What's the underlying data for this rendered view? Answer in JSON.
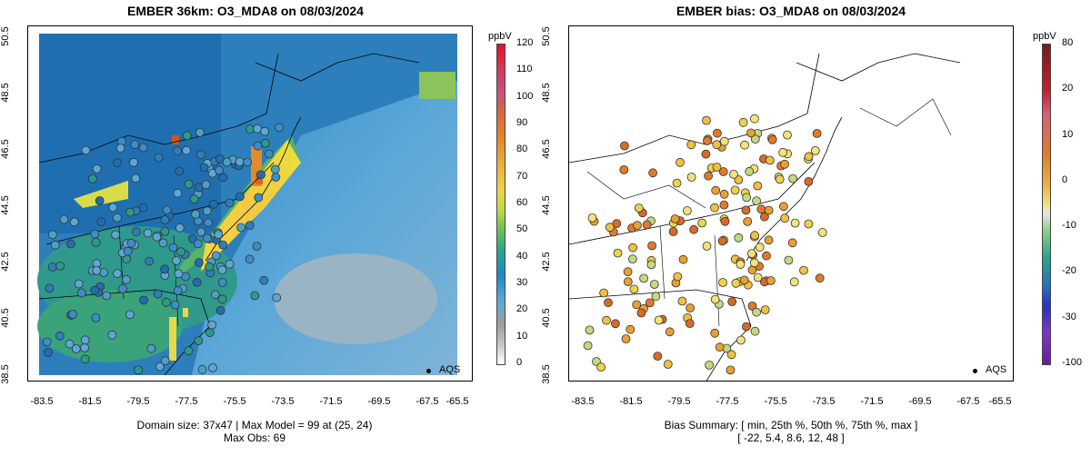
{
  "left_panel": {
    "title": "EMBER 36km: O3_MDA8 on 08/03/2024",
    "footer_line1": "Domain size: 37x47 | Max Model = 99 at (25, 24)",
    "footer_line2": "Max Obs: 69",
    "colorbar": {
      "unit": "ppbV",
      "ticks": [
        "120",
        "110",
        "100",
        "90",
        "80",
        "70",
        "60",
        "50",
        "40",
        "30",
        "20",
        "10",
        "0"
      ]
    },
    "legend_label": "AQS"
  },
  "right_panel": {
    "title": "EMBER bias: O3_MDA8 on 08/03/2024",
    "footer_line1": "Bias Summary: [ min, 25th %, 50th %, 75th %, max ]",
    "footer_line2": "[ -22,   5.4,   8.6,   12,   48 ]",
    "colorbar": {
      "unit": "ppbV",
      "ticks": [
        "80",
        "20",
        "10",
        "0",
        "-10",
        "-20",
        "-30",
        "-100"
      ]
    },
    "legend_label": "AQS"
  },
  "axes": {
    "x_ticks": [
      "-83.5",
      "-81.5",
      "-79.5",
      "-77.5",
      "-75.5",
      "-73.5",
      "-71.5",
      "-69.5",
      "-67.5",
      "-65.5"
    ],
    "y_ticks": [
      "38.5",
      "40.5",
      "42.5",
      "44.5",
      "46.5",
      "48.5",
      "50.5"
    ]
  }
}
